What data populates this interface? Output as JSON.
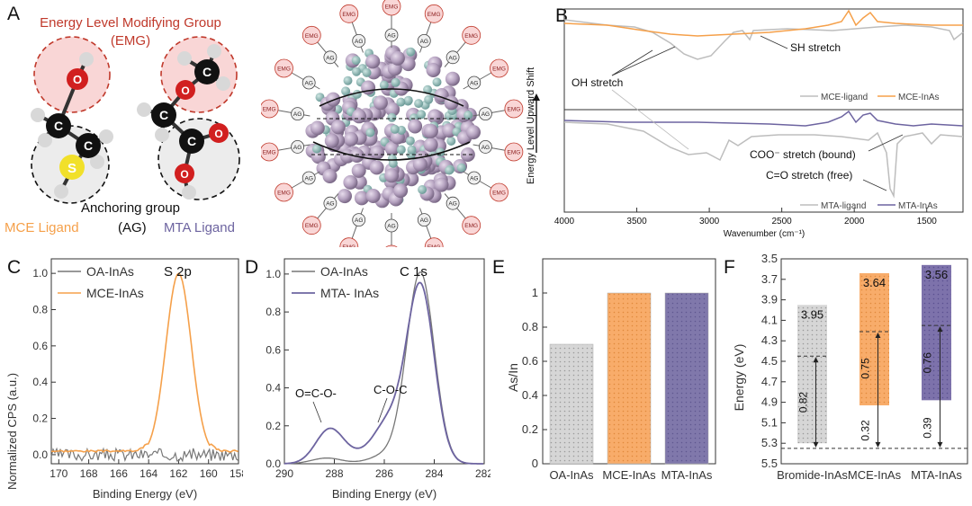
{
  "panels": {
    "A": {
      "letter": "A",
      "emg_title_line1": "Energy Level Modifying Group",
      "emg_title_line2": "(EMG)",
      "anchoring_title": "Anchoring group",
      "mce_ligand": "MCE Ligand",
      "ag": "(AG)",
      "mta_ligand": "MTA Ligand",
      "emg_tag": "EMG",
      "ag_tag": "AG",
      "atom_c": "C",
      "atom_o": "O",
      "atom_s": "S",
      "colors": {
        "mce": "#f5a04a",
        "mta": "#6d64a0",
        "emg_red": "#c0392b"
      }
    },
    "B": {
      "letter": "B",
      "ylabel": "Energy Level Upward Shift",
      "xlabel": "Wavenumber (cm⁻¹)",
      "ticks": [
        "4000",
        "3500",
        "3000",
        "2500",
        "2000",
        "1500"
      ],
      "ann_sh": "SH stretch",
      "ann_oh": "OH stretch",
      "ann_coo": "COO⁻ stretch (bound)",
      "ann_co": "C=O stretch (free)",
      "legend_top": [
        "MCE-ligand",
        "MCE-InAs"
      ],
      "legend_bottom": [
        "MTA-ligand",
        "MTA-InAs"
      ]
    },
    "C": {
      "letter": "C",
      "ylabel": "Normalized CPS (a.u.)",
      "xlabel": "Binding Energy (eV)",
      "peak_label": "S 2p",
      "legend": [
        "OA-InAs",
        "MCE-InAs"
      ],
      "xticks": [
        "170",
        "168",
        "166",
        "164",
        "162",
        "160",
        "158"
      ],
      "yticks": [
        "0.0",
        "0.2",
        "0.4",
        "0.6",
        "0.8",
        "1.0"
      ]
    },
    "D": {
      "letter": "D",
      "xlabel": "Binding Energy (eV)",
      "peak_label": "C 1s",
      "legend": [
        "OA-InAs",
        "MTA- InAs"
      ],
      "ann_ococ": "O=C-O-",
      "ann_coc": "C-O-C",
      "xticks": [
        "290",
        "288",
        "286",
        "284",
        "282"
      ],
      "yticks": [
        "0.0",
        "0.2",
        "0.4",
        "0.6",
        "0.8",
        "1.0"
      ]
    },
    "E": {
      "letter": "E",
      "ylabel": "As/In",
      "yticks": [
        "0",
        "0.2",
        "0.4",
        "0.6",
        "0.8",
        "1"
      ]
    },
    "F": {
      "letter": "F",
      "ylabel": "Energy (eV)",
      "yticks": [
        "3.5",
        "3.7",
        "3.9",
        "4.1",
        "4.3",
        "4.5",
        "4.7",
        "4.9",
        "5.1",
        "5.3",
        "5.5"
      ]
    }
  },
  "chart_data": [
    {
      "panel": "C",
      "type": "line",
      "xlabel": "Binding Energy (eV)",
      "ylabel": "Normalized CPS (a.u.)",
      "xlim": [
        170.5,
        158
      ],
      "ylim": [
        -0.05,
        1.08
      ],
      "series": [
        {
          "name": "OA-InAs",
          "color": "#777777",
          "peak_x": 162,
          "peak_y": 0.0
        },
        {
          "name": "MCE-InAs",
          "color": "#f5a04a",
          "peak_x": 162,
          "peak_y": 1.0
        }
      ]
    },
    {
      "panel": "D",
      "type": "line",
      "xlabel": "Binding Energy (eV)",
      "xlim": [
        290,
        282
      ],
      "ylim": [
        0,
        1.08
      ],
      "series": [
        {
          "name": "OA-InAs",
          "color": "#777777",
          "peak_x": 284.6,
          "peak_y": 1.0
        },
        {
          "name": "MTA- InAs",
          "color": "#6d64a0",
          "peak_x": 284.6,
          "peak_y": 0.99
        }
      ]
    },
    {
      "panel": "E",
      "type": "bar",
      "ylabel": "As/In",
      "ylim": [
        0,
        1.2
      ],
      "categories": [
        "OA-InAs",
        "MCE-InAs",
        "MTA-InAs"
      ],
      "values": [
        0.7,
        1.0,
        1.0
      ],
      "colors": [
        "#d6d6d6",
        "#f8ac6a",
        "#8078ab"
      ]
    },
    {
      "panel": "F",
      "type": "bar",
      "ylabel": "Energy (eV)",
      "ylim": [
        3.5,
        5.5
      ],
      "categories": [
        "Bromide-InAs",
        "MCE-InAs",
        "MTA-InAs"
      ],
      "top": [
        3.95,
        3.64,
        3.56
      ],
      "top_labels": [
        "3.95",
        "3.64",
        "3.56"
      ],
      "bottom": [
        5.3,
        4.93,
        4.88
      ],
      "mid": [
        4.45,
        4.21,
        4.15
      ],
      "gap_upper_labels": [
        "",
        "0.75",
        "0.76"
      ],
      "gap_lower_labels": [
        "0.82",
        "0.32",
        "0.39"
      ],
      "baseline": 5.35,
      "colors": [
        "#d6d6d6",
        "#f8ac6a",
        "#7d72ab"
      ]
    }
  ]
}
